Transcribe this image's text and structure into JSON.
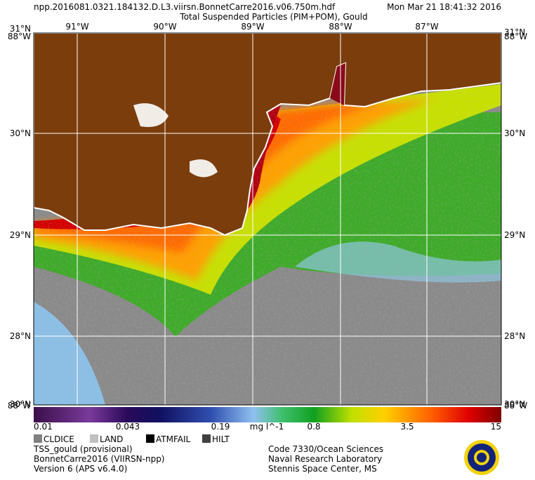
{
  "header": {
    "filename": "npp.2016081.0321.184132.D.L3.viirsn.BonnetCarre2016.v06.750m.hdf",
    "datetime": "Mon Mar 21 18:41:32 2016",
    "title": "Total Suspended Particles (PIM+POM), Gould"
  },
  "map": {
    "longitude_labels": [
      "91°W",
      "90°W",
      "89°W",
      "88°W",
      "87°W"
    ],
    "latitude_labels": [
      "30°N",
      "29°N",
      "28°N"
    ],
    "corner_labels": {
      "top": "31°N",
      "top_overlap": "88°W",
      "bottom": "30°N",
      "bottom_overlap": "88°W"
    }
  },
  "colorbar": {
    "labels": [
      "0.01",
      "0.043",
      "0.19",
      "0.8",
      "3.5",
      "15"
    ],
    "units": "mg l^-1"
  },
  "legend": [
    "CLDICE",
    "LAND",
    "ATMFAIL",
    "HILT"
  ],
  "footer": {
    "left": [
      "TSS_gould (provisional)",
      "BonnetCarre2016 (VIIRSN-npp)",
      "Version 6 (APS v6.4.0)"
    ],
    "right": [
      "Code 7330/Ocean Sciences",
      "Naval Research Laboratory",
      "Stennis Space Center, MS"
    ]
  }
}
